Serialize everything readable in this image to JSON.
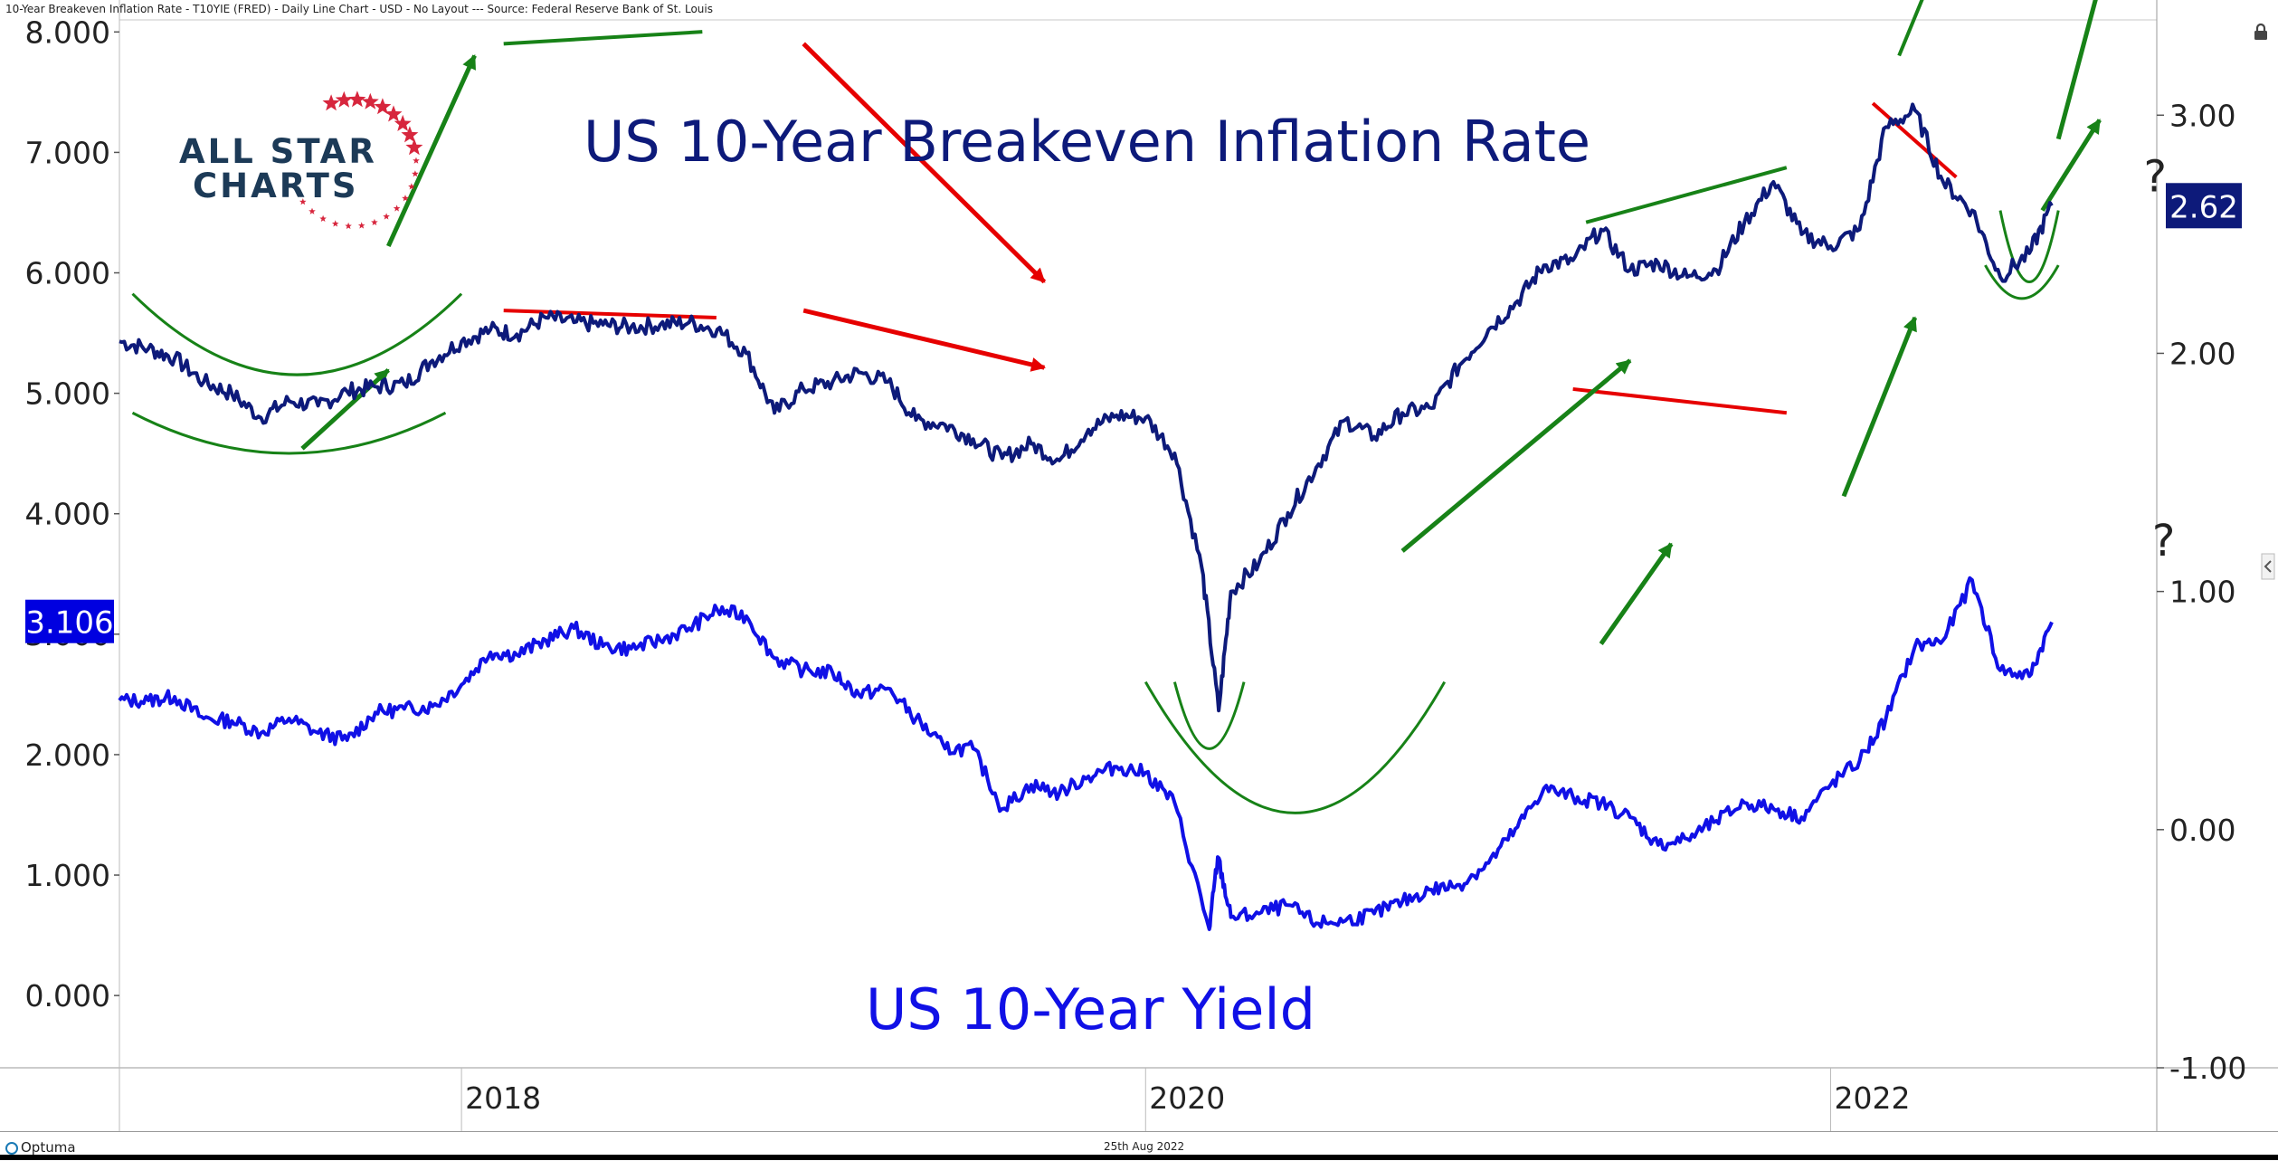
{
  "header": {
    "info": "10-Year Breakeven Inflation Rate - T10YIE (FRED) - Daily Line Chart - USD - No Layout --- Source: Federal Reserve Bank of St. Louis"
  },
  "logo": {
    "line1": "ALL STAR",
    "line2": "CHARTS"
  },
  "footer": {
    "brand": "Optuma",
    "date": "25th Aug 2022"
  },
  "icons": {
    "lock": "lock-icon",
    "collapse": "chevron-left-icon",
    "logo_mark": "optuma-logo-icon"
  },
  "colors": {
    "breakeven": "#0d1a7a",
    "yield": "#1010e6",
    "up_arrow": "#178217",
    "down_arrow": "#e60000",
    "arc": "#178217",
    "badge_breakeven": "#0d1a7a",
    "badge_yield": "#0000e0"
  },
  "chart_data": {
    "type": "line",
    "title": "US 10-Year Breakeven Inflation Rate",
    "yield_label": "US 10-Year Yield",
    "x_ticks": [
      "2018",
      "2020",
      "2022"
    ],
    "x_range": [
      "2017-01-01",
      "2022-12-15"
    ],
    "left_axis": {
      "ticks": [
        "0.000",
        "1.000",
        "2.000",
        "3.000",
        "4.000",
        "5.000",
        "6.000",
        "7.000",
        "8.000"
      ],
      "range": [
        -0.6,
        8.1
      ],
      "current_label": "3.106"
    },
    "right_axis": {
      "ticks": [
        "-1.00",
        "0.00",
        "1.00",
        "2.00",
        "3.00"
      ],
      "range": [
        -1.0,
        3.4
      ],
      "current_label": "2.62"
    },
    "series": [
      {
        "name": "US 10-Year Breakeven Inflation Rate",
        "axis": "right",
        "points": [
          [
            "2017-01-01",
            2.05
          ],
          [
            "2017-02-01",
            2.02
          ],
          [
            "2017-03-01",
            1.98
          ],
          [
            "2017-04-01",
            1.88
          ],
          [
            "2017-05-01",
            1.83
          ],
          [
            "2017-06-01",
            1.73
          ],
          [
            "2017-07-01",
            1.8
          ],
          [
            "2017-08-01",
            1.78
          ],
          [
            "2017-09-01",
            1.84
          ],
          [
            "2017-10-01",
            1.86
          ],
          [
            "2017-11-01",
            1.87
          ],
          [
            "2017-12-01",
            1.97
          ],
          [
            "2018-01-01",
            2.05
          ],
          [
            "2018-02-01",
            2.1
          ],
          [
            "2018-03-01",
            2.08
          ],
          [
            "2018-04-01",
            2.15
          ],
          [
            "2018-05-01",
            2.13
          ],
          [
            "2018-06-01",
            2.12
          ],
          [
            "2018-07-01",
            2.11
          ],
          [
            "2018-08-01",
            2.12
          ],
          [
            "2018-09-01",
            2.13
          ],
          [
            "2018-10-01",
            2.1
          ],
          [
            "2018-11-01",
            2.0
          ],
          [
            "2018-12-01",
            1.75
          ],
          [
            "2019-01-01",
            1.85
          ],
          [
            "2019-02-01",
            1.88
          ],
          [
            "2019-03-01",
            1.92
          ],
          [
            "2019-04-01",
            1.88
          ],
          [
            "2019-05-01",
            1.72
          ],
          [
            "2019-06-01",
            1.7
          ],
          [
            "2019-07-01",
            1.64
          ],
          [
            "2019-08-01",
            1.56
          ],
          [
            "2019-09-01",
            1.62
          ],
          [
            "2019-10-01",
            1.55
          ],
          [
            "2019-11-01",
            1.68
          ],
          [
            "2019-12-01",
            1.74
          ],
          [
            "2020-01-01",
            1.73
          ],
          [
            "2020-02-01",
            1.58
          ],
          [
            "2020-03-01",
            1.1
          ],
          [
            "2020-03-19",
            0.5
          ],
          [
            "2020-04-01",
            1.0
          ],
          [
            "2020-05-01",
            1.12
          ],
          [
            "2020-06-01",
            1.33
          ],
          [
            "2020-07-01",
            1.52
          ],
          [
            "2020-08-01",
            1.72
          ],
          [
            "2020-09-01",
            1.65
          ],
          [
            "2020-10-01",
            1.75
          ],
          [
            "2020-11-01",
            1.77
          ],
          [
            "2020-12-01",
            1.95
          ],
          [
            "2021-01-01",
            2.1
          ],
          [
            "2021-02-01",
            2.22
          ],
          [
            "2021-03-01",
            2.37
          ],
          [
            "2021-04-01",
            2.39
          ],
          [
            "2021-05-01",
            2.52
          ],
          [
            "2021-06-01",
            2.35
          ],
          [
            "2021-07-01",
            2.38
          ],
          [
            "2021-08-01",
            2.32
          ],
          [
            "2021-09-01",
            2.35
          ],
          [
            "2021-10-01",
            2.55
          ],
          [
            "2021-11-01",
            2.72
          ],
          [
            "2021-12-01",
            2.5
          ],
          [
            "2022-01-01",
            2.45
          ],
          [
            "2022-02-01",
            2.52
          ],
          [
            "2022-03-01",
            2.95
          ],
          [
            "2022-04-01",
            3.02
          ],
          [
            "2022-05-01",
            2.72
          ],
          [
            "2022-06-01",
            2.6
          ],
          [
            "2022-07-01",
            2.32
          ],
          [
            "2022-08-01",
            2.42
          ],
          [
            "2022-08-25",
            2.62
          ]
        ]
      },
      {
        "name": "US 10-Year Yield",
        "axis": "left",
        "points": [
          [
            "2017-01-01",
            2.45
          ],
          [
            "2017-02-01",
            2.45
          ],
          [
            "2017-03-01",
            2.48
          ],
          [
            "2017-04-01",
            2.3
          ],
          [
            "2017-05-01",
            2.28
          ],
          [
            "2017-06-01",
            2.18
          ],
          [
            "2017-07-01",
            2.3
          ],
          [
            "2017-08-01",
            2.18
          ],
          [
            "2017-09-01",
            2.12
          ],
          [
            "2017-10-01",
            2.35
          ],
          [
            "2017-11-01",
            2.38
          ],
          [
            "2017-12-01",
            2.4
          ],
          [
            "2018-01-01",
            2.58
          ],
          [
            "2018-02-01",
            2.85
          ],
          [
            "2018-03-01",
            2.83
          ],
          [
            "2018-04-01",
            2.95
          ],
          [
            "2018-05-01",
            3.05
          ],
          [
            "2018-06-01",
            2.9
          ],
          [
            "2018-07-01",
            2.88
          ],
          [
            "2018-08-01",
            2.95
          ],
          [
            "2018-09-01",
            3.05
          ],
          [
            "2018-10-01",
            3.2
          ],
          [
            "2018-11-01",
            3.15
          ],
          [
            "2018-12-01",
            2.8
          ],
          [
            "2019-01-01",
            2.7
          ],
          [
            "2019-02-01",
            2.68
          ],
          [
            "2019-03-01",
            2.5
          ],
          [
            "2019-04-01",
            2.55
          ],
          [
            "2019-05-01",
            2.3
          ],
          [
            "2019-06-01",
            2.05
          ],
          [
            "2019-07-01",
            2.05
          ],
          [
            "2019-08-01",
            1.55
          ],
          [
            "2019-09-01",
            1.75
          ],
          [
            "2019-10-01",
            1.68
          ],
          [
            "2019-11-01",
            1.82
          ],
          [
            "2019-12-01",
            1.9
          ],
          [
            "2020-01-01",
            1.85
          ],
          [
            "2020-02-01",
            1.6
          ],
          [
            "2020-03-09",
            0.55
          ],
          [
            "2020-03-18",
            1.15
          ],
          [
            "2020-04-01",
            0.65
          ],
          [
            "2020-05-01",
            0.68
          ],
          [
            "2020-06-01",
            0.75
          ],
          [
            "2020-07-01",
            0.6
          ],
          [
            "2020-08-01",
            0.62
          ],
          [
            "2020-09-01",
            0.68
          ],
          [
            "2020-10-01",
            0.78
          ],
          [
            "2020-11-01",
            0.88
          ],
          [
            "2020-12-01",
            0.92
          ],
          [
            "2021-01-01",
            1.1
          ],
          [
            "2021-02-01",
            1.4
          ],
          [
            "2021-03-01",
            1.72
          ],
          [
            "2021-04-01",
            1.65
          ],
          [
            "2021-05-01",
            1.6
          ],
          [
            "2021-06-01",
            1.48
          ],
          [
            "2021-07-01",
            1.25
          ],
          [
            "2021-08-01",
            1.3
          ],
          [
            "2021-09-01",
            1.45
          ],
          [
            "2021-10-01",
            1.6
          ],
          [
            "2021-11-01",
            1.55
          ],
          [
            "2021-12-01",
            1.48
          ],
          [
            "2022-01-01",
            1.75
          ],
          [
            "2022-02-01",
            1.95
          ],
          [
            "2022-03-01",
            2.3
          ],
          [
            "2022-04-01",
            2.9
          ],
          [
            "2022-05-01",
            2.95
          ],
          [
            "2022-06-01",
            3.45
          ],
          [
            "2022-07-01",
            2.7
          ],
          [
            "2022-08-01",
            2.65
          ],
          [
            "2022-08-25",
            3.1
          ]
        ]
      }
    ],
    "annotations": {
      "question_mark": "?",
      "arrows": [
        {
          "color": "up",
          "from": [
            "2017-07-15",
            1.6
          ],
          "to": [
            "2017-10-15",
            1.93
          ]
        },
        {
          "color": "down",
          "from": [
            "2019-01-01",
            2.18
          ],
          "to": [
            "2019-09-15",
            1.94
          ]
        },
        {
          "color": "up",
          "from": [
            "2020-10-01",
            1.17
          ],
          "to": [
            "2021-06-01",
            1.97
          ]
        },
        {
          "color": "up",
          "from": [
            "2022-08-15",
            2.6
          ],
          "to": [
            "2022-10-15",
            2.98
          ]
        },
        {
          "color": "up",
          "from": [
            "2017-10-15",
            2.45
          ],
          "to": [
            "2018-01-15",
            3.25
          ]
        },
        {
          "color": "down",
          "from": [
            "2019-01-01",
            3.3
          ],
          "to": [
            "2019-09-15",
            2.3
          ]
        },
        {
          "color": "up",
          "from": [
            "2021-05-01",
            0.78
          ],
          "to": [
            "2021-07-15",
            1.2
          ]
        },
        {
          "color": "up",
          "from": [
            "2022-01-15",
            1.4
          ],
          "to": [
            "2022-04-01",
            2.15
          ]
        },
        {
          "color": "up",
          "from": [
            "2022-09-01",
            2.9
          ],
          "to": [
            "2022-11-01",
            3.8
          ]
        }
      ],
      "trendlines": [
        {
          "color": "down",
          "from": [
            "2018-02-15",
            2.18
          ],
          "to": [
            "2018-09-30",
            2.15
          ]
        },
        {
          "color": "up",
          "from": [
            "2021-04-15",
            2.55
          ],
          "to": [
            "2021-11-15",
            2.78
          ]
        },
        {
          "color": "down",
          "from": [
            "2022-02-15",
            3.05
          ],
          "to": [
            "2022-05-15",
            2.74
          ]
        },
        {
          "color": "up",
          "from": [
            "2018-02-15",
            3.3
          ],
          "to": [
            "2018-09-15",
            3.35
          ]
        },
        {
          "color": "down",
          "from": [
            "2021-04-01",
            1.85
          ],
          "to": [
            "2021-11-15",
            1.75
          ]
        },
        {
          "color": "up",
          "from": [
            "2022-03-15",
            3.25
          ],
          "to": [
            "2022-05-01",
            3.7
          ]
        }
      ],
      "arcs": [
        {
          "from": [
            "2017-01-15",
            1.75
          ],
          "to": [
            "2017-12-15",
            1.75
          ],
          "depth": 0.17
        },
        {
          "from": [
            "2022-06-15",
            2.37
          ],
          "to": [
            "2022-09-01",
            2.37
          ],
          "depth": 0.14
        },
        {
          "from": [
            "2020-02-01",
            0.62
          ],
          "to": [
            "2020-04-15",
            0.62
          ],
          "depth": 0.28
        },
        {
          "from": [
            "2017-01-15",
            2.25
          ],
          "to": [
            "2018-01-01",
            2.25
          ],
          "depth": 0.34
        },
        {
          "from": [
            "2020-01-01",
            0.62
          ],
          "to": [
            "2020-11-15",
            0.62
          ],
          "depth": 0.55
        },
        {
          "from": [
            "2022-07-01",
            2.6
          ],
          "to": [
            "2022-09-01",
            2.6
          ],
          "depth": 0.3
        }
      ]
    }
  }
}
